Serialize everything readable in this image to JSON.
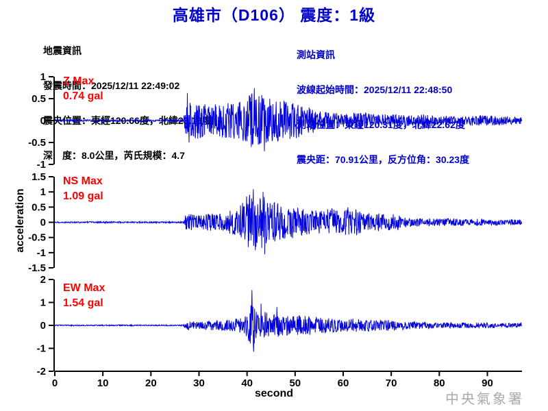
{
  "title": "高雄市（D106） 震度：1級",
  "quake_info": {
    "heading": "地震資訊",
    "origin_time": "發震時間：2025/12/11 22:49:02",
    "epicenter": "震央位置：東經120.66度，北緯23.18度",
    "depth_magnitude": "深　度：8.0公里，芮氏規模：4.7"
  },
  "station_info": {
    "heading": "測站資訊",
    "wave_start_time": "波線起始時間：2025/12/11 22:48:50",
    "station_location": "測站位置：東經120.31度，北緯22.62度",
    "distance_azimuth": "震央距：70.91公里，反方位角：30.23度"
  },
  "footer_agency": "中央氣象署",
  "colors": {
    "title": "#0000CC",
    "station_info": "#0000CC",
    "trace": "#0000DD",
    "max_label": "#FF0000",
    "agency": "#AAAAAA",
    "axis": "#000000"
  },
  "chart_data": {
    "type": "line",
    "subtype": "seismogram-3-component",
    "ylabel": "acceleration",
    "x": {
      "label": "second",
      "min": 0,
      "max": 97.2,
      "ticks": [
        0,
        10,
        20,
        30,
        40,
        50,
        60,
        70,
        80,
        90
      ]
    },
    "event_onset_s": 27,
    "panels": [
      {
        "id": "Z",
        "label": "Z Max",
        "max_gal": 0.74,
        "max_text": "0.74 gal",
        "ylim": [
          -1,
          1
        ],
        "yticks": [
          1,
          0.5,
          0,
          -0.5,
          -1
        ],
        "seed": 11,
        "envelope": [
          [
            0,
            0.025
          ],
          [
            26.8,
            0.025
          ],
          [
            27.2,
            0.45
          ],
          [
            27.8,
            0.55
          ],
          [
            28.5,
            0.4
          ],
          [
            30,
            0.42
          ],
          [
            32,
            0.35
          ],
          [
            34,
            0.38
          ],
          [
            36,
            0.45
          ],
          [
            38,
            0.42
          ],
          [
            40,
            0.5
          ],
          [
            41,
            0.65
          ],
          [
            42,
            0.55
          ],
          [
            43,
            0.62
          ],
          [
            44,
            0.55
          ],
          [
            45,
            0.5
          ],
          [
            46,
            0.52
          ],
          [
            47,
            0.45
          ],
          [
            48,
            0.45
          ],
          [
            50,
            0.42
          ],
          [
            52,
            0.32
          ],
          [
            54,
            0.28
          ],
          [
            56,
            0.2
          ],
          [
            58,
            0.18
          ],
          [
            60,
            0.15
          ],
          [
            64,
            0.2
          ],
          [
            67,
            0.13
          ],
          [
            70,
            0.15
          ],
          [
            73,
            0.12
          ],
          [
            77,
            0.16
          ],
          [
            80,
            0.1
          ],
          [
            85,
            0.1
          ],
          [
            89,
            0.13
          ],
          [
            93,
            0.1
          ],
          [
            97,
            0.08
          ]
        ],
        "spikes": [
          [
            27.6,
            0.63
          ],
          [
            27.9,
            -0.5
          ],
          [
            40.9,
            -0.6
          ],
          [
            41.5,
            0.74
          ],
          [
            43.6,
            -0.7
          ]
        ]
      },
      {
        "id": "NS",
        "label": "NS Max",
        "max_gal": 1.09,
        "max_text": "1.09 gal",
        "ylim": [
          -1.5,
          1.5
        ],
        "yticks": [
          1.5,
          1,
          0.5,
          0,
          -0.5,
          -1,
          -1.5
        ],
        "seed": 22,
        "envelope": [
          [
            0,
            0.025
          ],
          [
            26.8,
            0.025
          ],
          [
            27.2,
            0.25
          ],
          [
            28,
            0.28
          ],
          [
            30,
            0.25
          ],
          [
            32,
            0.3
          ],
          [
            34,
            0.28
          ],
          [
            36,
            0.35
          ],
          [
            38,
            0.5
          ],
          [
            39,
            0.65
          ],
          [
            40,
            0.85
          ],
          [
            41,
            1.0
          ],
          [
            42,
            0.8
          ],
          [
            43,
            0.95
          ],
          [
            44,
            0.75
          ],
          [
            45,
            0.65
          ],
          [
            46,
            0.7
          ],
          [
            47,
            0.55
          ],
          [
            48,
            0.55
          ],
          [
            49,
            0.5
          ],
          [
            50,
            0.55
          ],
          [
            51,
            0.45
          ],
          [
            52,
            0.45
          ],
          [
            54,
            0.4
          ],
          [
            56,
            0.4
          ],
          [
            57,
            0.5
          ],
          [
            58,
            0.45
          ],
          [
            59,
            0.4
          ],
          [
            60,
            0.35
          ],
          [
            61,
            0.5
          ],
          [
            62,
            0.4
          ],
          [
            63,
            0.45
          ],
          [
            64,
            0.3
          ],
          [
            65,
            0.35
          ],
          [
            66,
            0.28
          ],
          [
            68,
            0.3
          ],
          [
            70,
            0.25
          ],
          [
            71,
            0.3
          ],
          [
            72,
            0.2
          ],
          [
            74,
            0.15
          ],
          [
            77,
            0.13
          ],
          [
            80,
            0.12
          ],
          [
            85,
            0.12
          ],
          [
            90,
            0.1
          ],
          [
            97,
            0.09
          ]
        ],
        "spikes": [
          [
            39.9,
            0.85
          ],
          [
            41.3,
            1.09
          ],
          [
            41.7,
            -0.92
          ],
          [
            43.3,
            1.0
          ],
          [
            43.7,
            -1.05
          ]
        ]
      },
      {
        "id": "EW",
        "label": "EW Max",
        "max_gal": 1.54,
        "max_text": "1.54 gal",
        "ylim": [
          -2,
          2
        ],
        "yticks": [
          2,
          1,
          0,
          -1,
          -2
        ],
        "seed": 33,
        "envelope": [
          [
            0,
            0.025
          ],
          [
            26.8,
            0.025
          ],
          [
            27.2,
            0.18
          ],
          [
            28,
            0.2
          ],
          [
            30,
            0.16
          ],
          [
            32,
            0.2
          ],
          [
            34,
            0.22
          ],
          [
            36,
            0.25
          ],
          [
            38,
            0.3
          ],
          [
            39,
            0.35
          ],
          [
            40,
            0.5
          ],
          [
            40.7,
            0.9
          ],
          [
            41.5,
            0.8
          ],
          [
            42,
            0.6
          ],
          [
            43,
            0.55
          ],
          [
            44,
            0.6
          ],
          [
            45,
            0.5
          ],
          [
            46,
            0.55
          ],
          [
            47,
            0.5
          ],
          [
            48,
            0.45
          ],
          [
            50,
            0.42
          ],
          [
            52,
            0.45
          ],
          [
            54,
            0.38
          ],
          [
            56,
            0.32
          ],
          [
            58,
            0.32
          ],
          [
            60,
            0.28
          ],
          [
            62,
            0.3
          ],
          [
            64,
            0.25
          ],
          [
            66,
            0.26
          ],
          [
            68,
            0.22
          ],
          [
            70,
            0.24
          ],
          [
            72,
            0.18
          ],
          [
            75,
            0.16
          ],
          [
            78,
            0.14
          ],
          [
            82,
            0.12
          ],
          [
            86,
            0.12
          ],
          [
            90,
            0.13
          ],
          [
            94,
            0.1
          ],
          [
            97,
            0.1
          ]
        ],
        "spikes": [
          [
            40.5,
            -0.7
          ],
          [
            41.0,
            1.54
          ],
          [
            41.35,
            -1.15
          ],
          [
            42.9,
            0.95
          ],
          [
            46.2,
            0.8
          ]
        ]
      }
    ]
  }
}
